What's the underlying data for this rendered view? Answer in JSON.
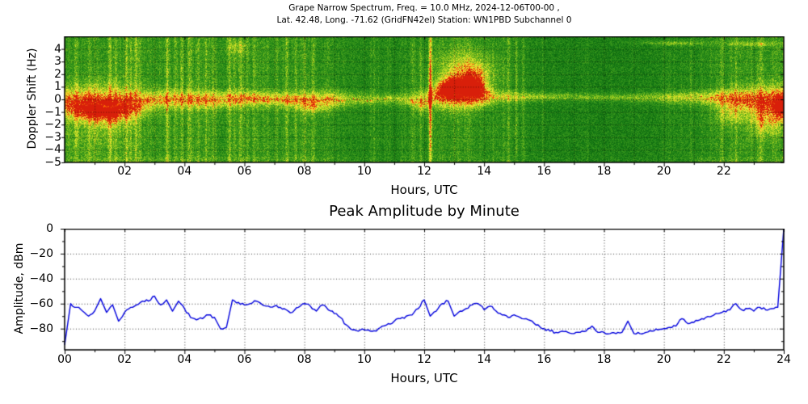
{
  "figure": {
    "title_line1": "Grape Narrow Spectrum, Freq. = 10.0 MHz, 2024-12-06T00-00 ,",
    "title_line2": "Lat.  42.48, Long. -71.62 (GridFN42el) Station: WN1PBD Subchannel 0",
    "background": "#ffffff"
  },
  "chart_data": [
    {
      "type": "heatmap",
      "name": "doppler-spectrogram",
      "xlabel": "Hours, UTC",
      "ylabel": "Doppler Shift (Hz)",
      "xlim": [
        0,
        24
      ],
      "ylim": [
        -5,
        5
      ],
      "xticks": [
        "02",
        "04",
        "06",
        "08",
        "10",
        "12",
        "14",
        "16",
        "18",
        "20",
        "22"
      ],
      "yticks": [
        "4",
        "3",
        "2",
        "1",
        "0",
        "−1",
        "−2",
        "−3",
        "−4",
        "−5"
      ],
      "grid": true,
      "colormap_stops": [
        [
          "0.00",
          "#064a06"
        ],
        [
          "0.30",
          "#157a15"
        ],
        [
          "0.50",
          "#3f9c1c"
        ],
        [
          "0.62",
          "#78bc1e"
        ],
        [
          "0.74",
          "#c4da22"
        ],
        [
          "0.84",
          "#f2ee3a"
        ],
        [
          "0.91",
          "#ffae1e"
        ],
        [
          "1.00",
          "#d81f0a"
        ]
      ],
      "red_trace_colors": [
        "#d62b0e",
        "#e63510",
        "#ff7a00"
      ],
      "carrier_band": {
        "hours": [
          0,
          1,
          1.5,
          2,
          2.5,
          3,
          4,
          5,
          5.5,
          6,
          7,
          8,
          9,
          9.5,
          10,
          10.5,
          11,
          11.5,
          12,
          12.3,
          12.6,
          13,
          13.5,
          14,
          14.3,
          14.6,
          15,
          16,
          17,
          18,
          19,
          20,
          21,
          21.5,
          22,
          22.5,
          23,
          23.5,
          24
        ],
        "center_hz": [
          -0.15,
          -0.35,
          -0.5,
          -0.35,
          -0.2,
          -0.05,
          0,
          -0.05,
          0,
          0.05,
          0,
          -0.05,
          0,
          0,
          0,
          0,
          0.05,
          -0.05,
          -0.2,
          0.15,
          0.3,
          0.35,
          0.3,
          0.25,
          0.2,
          0.2,
          0.2,
          0.2,
          0.2,
          0.15,
          0.15,
          0.15,
          0.15,
          0.1,
          0.1,
          0.05,
          0,
          0,
          0
        ],
        "intensity": [
          0.95,
          1,
          1,
          0.9,
          0.85,
          0.8,
          0.8,
          0.85,
          0.9,
          0.85,
          0.8,
          0.85,
          0.8,
          0.6,
          0.55,
          0.5,
          0.55,
          0.65,
          0.9,
          0.8,
          1,
          1,
          0.95,
          0.85,
          0.7,
          0.6,
          0.6,
          0.55,
          0.5,
          0.5,
          0.55,
          0.6,
          0.7,
          0.8,
          0.9,
          1,
          1,
          1,
          1
        ],
        "width_hz": [
          0.8,
          1.0,
          1.1,
          0.9,
          0.7,
          0.55,
          0.5,
          0.5,
          0.45,
          0.4,
          0.4,
          0.45,
          0.5,
          0.4,
          0.35,
          0.3,
          0.3,
          0.35,
          0.6,
          0.5,
          0.7,
          0.8,
          0.7,
          0.6,
          0.4,
          0.3,
          0.28,
          0.25,
          0.22,
          0.22,
          0.25,
          0.3,
          0.35,
          0.4,
          0.5,
          0.6,
          0.7,
          0.75,
          0.7
        ]
      },
      "red_trace_segments": [
        {
          "from": 0.05,
          "to": 3.0,
          "density": 0.8,
          "scatter": 0.05
        },
        {
          "from": 3.0,
          "to": 5.35,
          "density": 0.5,
          "scatter": 0.05
        },
        {
          "from": 5.5,
          "to": 9.4,
          "density": 0.75,
          "scatter": 0.04
        },
        {
          "from": 9.6,
          "to": 11.3,
          "density": 0.2,
          "scatter": 0.04
        },
        {
          "from": 11.5,
          "to": 12.1,
          "density": 0.6,
          "scatter": 0.08
        },
        {
          "from": 12.4,
          "to": 13.9,
          "density": 0.5,
          "scatter": 0.35
        },
        {
          "from": 14.0,
          "to": 14.6,
          "density": 0.3,
          "scatter": 0.1
        },
        {
          "from": 21.3,
          "to": 23.9,
          "density": 0.55,
          "scatter": 0.15
        }
      ],
      "bright_plumes": [
        {
          "t": 1.2,
          "dt": 1.1,
          "f": -0.9,
          "df": 0.9,
          "amp": 0.4
        },
        {
          "t": 12.9,
          "dt": 0.45,
          "f": 0.9,
          "df": 0.7,
          "amp": 0.55
        },
        {
          "t": 13.4,
          "dt": 0.9,
          "f": 2.0,
          "df": 1.7,
          "amp": 0.5
        },
        {
          "t": 13.7,
          "dt": 0.35,
          "f": 1.2,
          "df": 1.2,
          "amp": 0.45
        },
        {
          "t": 12.2,
          "dt": 0.05,
          "f": 0,
          "df": 5.5,
          "amp": 0.4
        },
        {
          "t": 8.3,
          "dt": 0.5,
          "f": -0.7,
          "df": 0.5,
          "amp": 0.25
        },
        {
          "t": 22.2,
          "dt": 0.5,
          "f": -1.2,
          "df": 0.9,
          "amp": 0.3
        },
        {
          "t": 23.4,
          "dt": 0.55,
          "f": -1.6,
          "df": 1.3,
          "amp": 0.45
        },
        {
          "t": 23.9,
          "dt": 0.2,
          "f": -0.8,
          "df": 1.0,
          "amp": 0.5
        },
        {
          "t": 20.3,
          "dt": 1.1,
          "f": 4.45,
          "df": 0.15,
          "amp": 0.3
        },
        {
          "t": 23.0,
          "dt": 0.9,
          "f": 4.4,
          "df": 0.18,
          "amp": 0.28
        },
        {
          "t": 5.75,
          "dt": 0.35,
          "f": 4.1,
          "df": 0.5,
          "amp": 0.22
        },
        {
          "t": 0.9,
          "dt": 1.3,
          "f": -3.0,
          "df": 2.0,
          "amp": 0.12
        }
      ],
      "background_level": {
        "hours": [
          0,
          2,
          4,
          6,
          8,
          9.5,
          11,
          12,
          13,
          14.5,
          16,
          18,
          20,
          21,
          22,
          23,
          24
        ],
        "level": [
          0.4,
          0.42,
          0.4,
          0.4,
          0.41,
          0.36,
          0.34,
          0.38,
          0.42,
          0.38,
          0.32,
          0.31,
          0.33,
          0.36,
          0.4,
          0.42,
          0.42
        ]
      },
      "streak_zone": {
        "hours": [
          0,
          9.3,
          9.6,
          11.4,
          11.8,
          14.2,
          14.6,
          15.8,
          16.2,
          20.8,
          21.2,
          24
        ],
        "probability": [
          0.55,
          0.55,
          0.22,
          0.22,
          0.45,
          0.45,
          0.35,
          0.35,
          0.1,
          0.1,
          0.4,
          0.5
        ]
      },
      "strong_streaks": [
        [
          0.35,
          0.15
        ],
        [
          0.8,
          0.18
        ],
        [
          1.5,
          0.22
        ],
        [
          1.7,
          0.2
        ],
        [
          2.05,
          0.22
        ],
        [
          2.2,
          0.18
        ],
        [
          2.35,
          0.2
        ],
        [
          2.5,
          0.16
        ],
        [
          3.4,
          0.2
        ],
        [
          3.7,
          0.18
        ],
        [
          3.9,
          0.16
        ],
        [
          4.15,
          0.2
        ],
        [
          4.45,
          0.16
        ],
        [
          4.7,
          0.18
        ],
        [
          4.95,
          0.14
        ],
        [
          5.5,
          0.22
        ],
        [
          5.65,
          0.18
        ],
        [
          5.85,
          0.2
        ],
        [
          6.1,
          0.16
        ],
        [
          6.3,
          0.14
        ],
        [
          7.4,
          0.16
        ],
        [
          7.7,
          0.18
        ],
        [
          8.0,
          0.16
        ],
        [
          8.3,
          0.18
        ],
        [
          11.6,
          0.14
        ],
        [
          12.2,
          0.3
        ],
        [
          14.8,
          0.18
        ],
        [
          15.05,
          0.16
        ],
        [
          15.3,
          0.16
        ],
        [
          21.9,
          0.14
        ],
        [
          22.4,
          0.14
        ],
        [
          23.2,
          0.16
        ]
      ]
    },
    {
      "type": "line",
      "name": "peak-amplitude",
      "title": "Peak Amplitude by Minute",
      "xlabel": "Hours, UTC",
      "ylabel": "Amplitude, dBm",
      "xlim": [
        0,
        24
      ],
      "ylim": [
        -97,
        0
      ],
      "xticks": [
        "00",
        "02",
        "04",
        "06",
        "08",
        "10",
        "12",
        "14",
        "16",
        "18",
        "20",
        "22",
        "24"
      ],
      "yticks": [
        "0",
        "−20",
        "−40",
        "−60",
        "−80"
      ],
      "grid": true,
      "line_color": "#0000dd",
      "series": [
        {
          "name": "Peak amplitude",
          "x_start_hours": 0,
          "x_step_hours": 0.2,
          "y_dbm": [
            -93,
            -60,
            -63,
            -66,
            -70,
            -66,
            -56,
            -67,
            -61,
            -74,
            -67,
            -63,
            -61,
            -58,
            -58,
            -54,
            -61,
            -57,
            -66,
            -58,
            -64,
            -71,
            -73,
            -72,
            -69,
            -71,
            -80,
            -79,
            -57,
            -59,
            -61,
            -60,
            -58,
            -61,
            -62,
            -62,
            -63,
            -65,
            -67,
            -63,
            -60,
            -62,
            -66,
            -61,
            -65,
            -68,
            -71,
            -77,
            -81,
            -82,
            -81,
            -82,
            -82,
            -78,
            -76,
            -74,
            -72,
            -70,
            -69,
            -64,
            -57,
            -70,
            -66,
            -60,
            -58,
            -70,
            -66,
            -64,
            -61,
            -60,
            -65,
            -62,
            -66,
            -69,
            -71,
            -69,
            -71,
            -72,
            -74,
            -77,
            -80,
            -82,
            -83,
            -82,
            -83,
            -84,
            -83,
            -82,
            -78,
            -83,
            -83,
            -84,
            -84,
            -83,
            -74,
            -84,
            -84,
            -83,
            -82,
            -81,
            -80,
            -79,
            -78,
            -72,
            -76,
            -75,
            -73,
            -71,
            -70,
            -68,
            -66,
            -65,
            -60,
            -65,
            -64,
            -66,
            -63,
            -65,
            -64,
            -63,
            0
          ]
        }
      ]
    }
  ]
}
